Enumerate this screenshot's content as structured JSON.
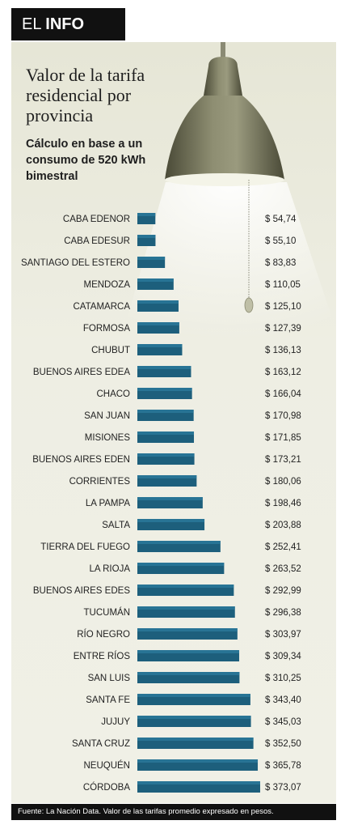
{
  "header": {
    "prefix": "EL",
    "bold": "INFO"
  },
  "footer": {
    "source": "Fuente: La Nación Data. Valor de las tarifas promedio expresado en pesos."
  },
  "chart_data": {
    "type": "bar",
    "orientation": "horizontal",
    "title": "Valor de la tarifa residencial por provincia",
    "subtitle": "Cálculo en base a un consumo de 520 kWh bimestral",
    "xlabel": "",
    "ylabel": "",
    "xlim": [
      0,
      373.07
    ],
    "grid": false,
    "colors": {
      "bar": "#1d5f7c",
      "bar_light": "#2e7ea0"
    },
    "categories": [
      "CABA EDENOR",
      "CABA EDESUR",
      "SANTIAGO DEL ESTERO",
      "MENDOZA",
      "CATAMARCA",
      "FORMOSA",
      "CHUBUT",
      "BUENOS AIRES EDEA",
      "CHACO",
      "SAN JUAN",
      "MISIONES",
      "BUENOS AIRES EDEN",
      "CORRIENTES",
      "LA PAMPA",
      "SALTA",
      "TIERRA DEL FUEGO",
      "LA RIOJA",
      "BUENOS AIRES EDES",
      "TUCUMÁN",
      "RÍO NEGRO",
      "ENTRE RÍOS",
      "SAN LUIS",
      "SANTA FE",
      "JUJUY",
      "SANTA CRUZ",
      "NEUQUÉN",
      "CÓRDOBA"
    ],
    "values": [
      54.74,
      55.1,
      83.83,
      110.05,
      125.1,
      127.39,
      136.13,
      163.12,
      166.04,
      170.98,
      171.85,
      173.21,
      180.06,
      198.46,
      203.88,
      252.41,
      263.52,
      292.99,
      296.38,
      303.97,
      309.34,
      310.25,
      343.4,
      345.03,
      352.5,
      365.78,
      373.07
    ],
    "value_labels": [
      "$ 54,74",
      "$ 55,10",
      "$ 83,83",
      "$ 110,05",
      "$ 125,10",
      "$ 127,39",
      "$ 136,13",
      "$ 163,12",
      "$ 166,04",
      "$ 170,98",
      "$ 171,85",
      "$ 173,21",
      "$ 180,06",
      "$ 198,46",
      "$ 203,88",
      "$ 252,41",
      "$ 263,52",
      "$ 292,99",
      "$ 296,38",
      "$ 303,97",
      "$ 309,34",
      "$ 310,25",
      "$ 343,40",
      "$ 345,03",
      "$ 352,50",
      "$ 365,78",
      "$ 373,07"
    ]
  }
}
